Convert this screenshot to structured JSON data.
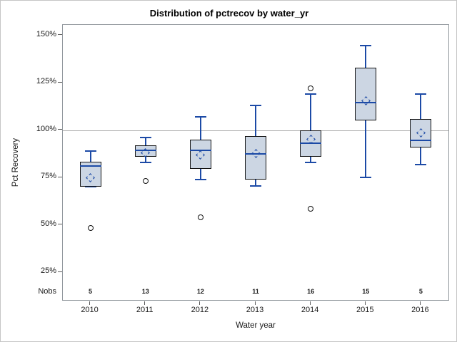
{
  "figure": {
    "title": "Distribution of pctrecov by water_yr",
    "x_axis_label": "Water year",
    "y_axis_label": "Pct Recovery",
    "nobs_row_label": "Nobs"
  },
  "chart_data": {
    "type": "boxplot",
    "title": "Distribution of pctrecov by water_yr",
    "xlabel": "Water year",
    "ylabel": "Pct Recovery",
    "categories": [
      "2010",
      "2011",
      "2012",
      "2013",
      "2014",
      "2015",
      "2016"
    ],
    "nobs": [
      5,
      13,
      12,
      11,
      16,
      15,
      5
    ],
    "y_ticks": [
      {
        "value": 150,
        "label": "150%"
      },
      {
        "value": 125,
        "label": "125%"
      },
      {
        "value": 100,
        "label": "100%"
      },
      {
        "value": 75,
        "label": "75%"
      },
      {
        "value": 50,
        "label": "50%"
      },
      {
        "value": 25,
        "label": "25%"
      }
    ],
    "reference_line_value": 100,
    "groups": [
      {
        "category": "2010",
        "n": 5,
        "whisker_low": 70,
        "q1": 70,
        "median": 81,
        "q3": 83.5,
        "whisker_high": 89,
        "mean": 75,
        "outliers": [
          48.5
        ]
      },
      {
        "category": "2011",
        "n": 13,
        "whisker_low": 83,
        "q1": 86,
        "median": 89.5,
        "q3": 92,
        "whisker_high": 96,
        "mean": 88,
        "outliers": [
          73
        ]
      },
      {
        "category": "2012",
        "n": 12,
        "whisker_low": 74,
        "q1": 79.5,
        "median": 89.5,
        "q3": 95,
        "whisker_high": 107,
        "mean": 87,
        "outliers": [
          54
        ]
      },
      {
        "category": "2013",
        "n": 11,
        "whisker_low": 70.5,
        "q1": 74,
        "median": 87.5,
        "q3": 97,
        "whisker_high": 113,
        "mean": 87.5,
        "outliers": []
      },
      {
        "category": "2014",
        "n": 16,
        "whisker_low": 83,
        "q1": 86,
        "median": 93,
        "q3": 100,
        "whisker_high": 119,
        "mean": 95,
        "outliers": [
          122,
          58.5
        ]
      },
      {
        "category": "2015",
        "n": 15,
        "whisker_low": 75,
        "q1": 105,
        "median": 114.5,
        "q3": 133,
        "whisker_high": 144.5,
        "mean": 115.5,
        "outliers": []
      },
      {
        "category": "2016",
        "n": 5,
        "whisker_low": 82,
        "q1": 91,
        "median": 94.5,
        "q3": 106,
        "whisker_high": 119,
        "mean": 98.5,
        "outliers": []
      }
    ],
    "colors": {
      "box_fill": "#ccd6e3",
      "box_border": "#111111",
      "accent_blue": "#1c4aa6",
      "reference_line": "#ababab",
      "frame": "#8f959b",
      "tick": "#5a5a5a"
    },
    "legend_position": "none",
    "grid": "reference line at 100% only"
  }
}
